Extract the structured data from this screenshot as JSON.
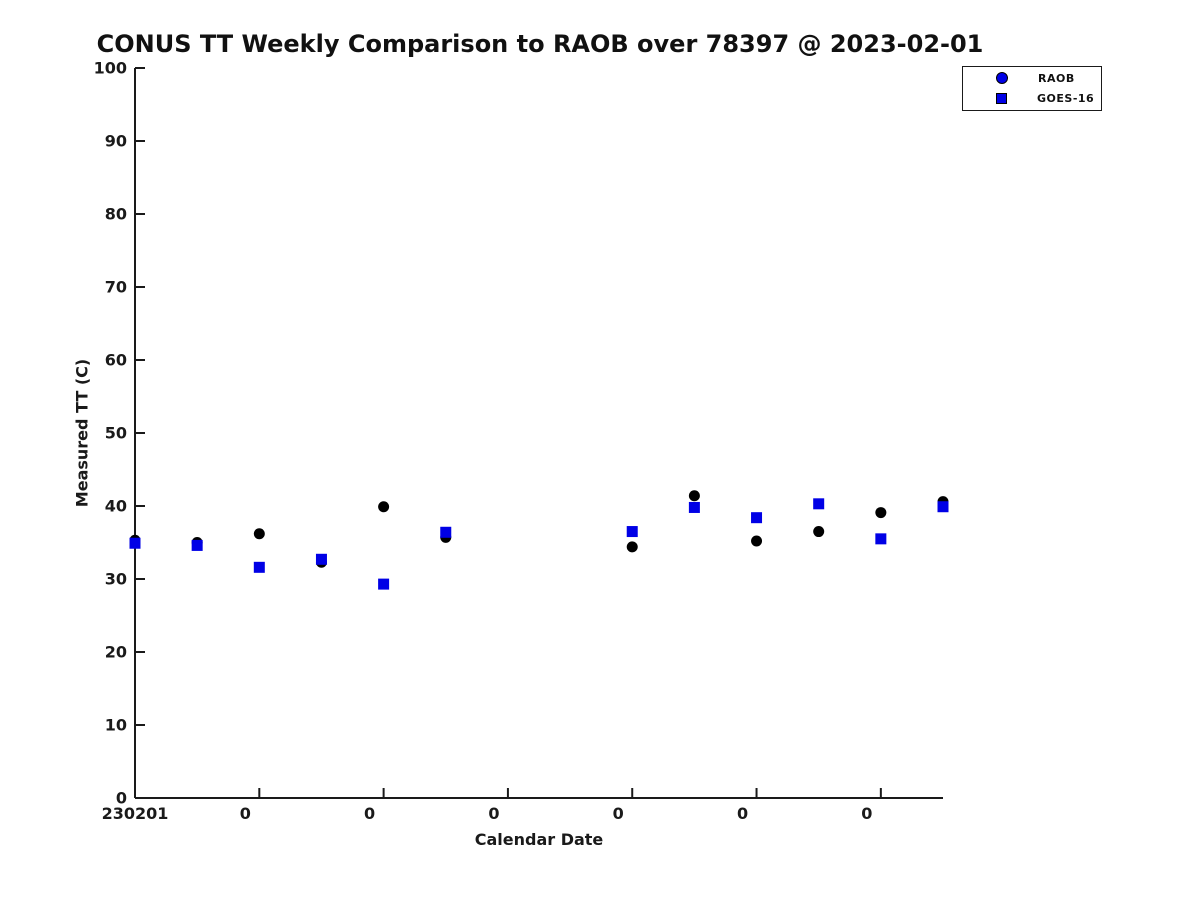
{
  "chart_data": {
    "type": "scatter",
    "title": "CONUS TT Weekly Comparison to RAOB over 78397 @ 2023-02-01",
    "xlabel": "Calendar Date",
    "ylabel": "Measured TT (C)",
    "ylim": [
      0,
      100
    ],
    "y_ticks": [
      0,
      10,
      20,
      30,
      40,
      50,
      60,
      70,
      80,
      90,
      100
    ],
    "x_slot_count": 14,
    "x_ticks_at_slots": [
      0,
      2,
      4,
      6,
      8,
      10,
      12
    ],
    "x_tick_labels": [
      "230201",
      "0",
      "0",
      "0",
      "0",
      "0",
      "0"
    ],
    "grid": false,
    "legend_position": "top-right",
    "legend_marker_color": "#0000e6",
    "colors": {
      "axis_and_text": "#1a1a1a",
      "raob_marker": "#000000",
      "goes16_marker": "#0000e6"
    },
    "series": [
      {
        "name": "RAOB",
        "marker": "circle",
        "plot_color": "#000000",
        "values": [
          35.3,
          35.0,
          36.2,
          32.3,
          39.9,
          35.7,
          null,
          null,
          34.4,
          41.4,
          35.2,
          36.5,
          39.1,
          40.6
        ]
      },
      {
        "name": "GOES-16",
        "marker": "square",
        "plot_color": "#0000e6",
        "values": [
          34.9,
          34.6,
          31.6,
          32.7,
          29.3,
          36.4,
          null,
          null,
          36.5,
          39.8,
          38.4,
          40.3,
          35.5,
          39.9
        ]
      }
    ]
  }
}
